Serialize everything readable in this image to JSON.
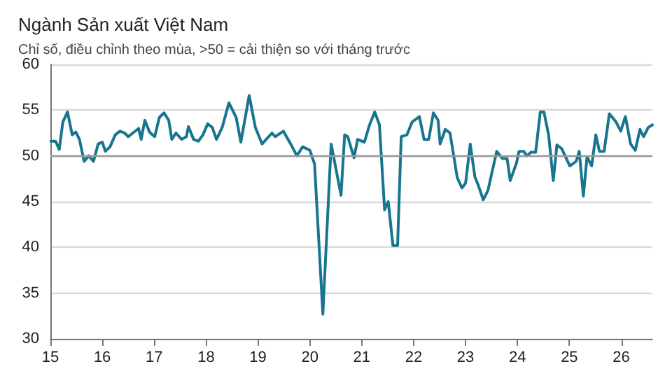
{
  "chart_data": {
    "type": "line",
    "title": "Ngành Sản xuất Việt Nam",
    "subtitle": "Chỉ số, điều chỉnh theo mùa, >50 = cải thiện so với tháng trước",
    "x": [
      2015.01,
      2015.1,
      2015.17,
      2015.24,
      2015.33,
      2015.42,
      2015.49,
      2015.56,
      2015.65,
      2015.74,
      2015.83,
      2015.92,
      2016.0,
      2016.06,
      2016.15,
      2016.25,
      2016.34,
      2016.43,
      2016.5,
      2016.61,
      2016.7,
      2016.75,
      2016.82,
      2016.91,
      2017.01,
      2017.1,
      2017.19,
      2017.28,
      2017.34,
      2017.42,
      2017.53,
      2017.62,
      2017.66,
      2017.76,
      2017.85,
      2017.94,
      2018.03,
      2018.12,
      2018.2,
      2018.31,
      2018.44,
      2018.58,
      2018.67,
      2018.83,
      2018.95,
      2019.08,
      2019.27,
      2019.33,
      2019.49,
      2019.63,
      2019.75,
      2019.86,
      2020.0,
      2020.09,
      2020.25,
      2020.41,
      2020.6,
      2020.67,
      2020.73,
      2020.85,
      2020.92,
      2021.05,
      2021.15,
      2021.25,
      2021.34,
      2021.44,
      2021.51,
      2021.6,
      2021.69,
      2021.76,
      2021.87,
      2021.97,
      2022.11,
      2022.2,
      2022.29,
      2022.38,
      2022.47,
      2022.51,
      2022.61,
      2022.7,
      2022.84,
      2022.93,
      2023.0,
      2023.09,
      2023.18,
      2023.25,
      2023.34,
      2023.43,
      2023.6,
      2023.71,
      2023.8,
      2023.86,
      2023.98,
      2024.03,
      2024.12,
      2024.18,
      2024.26,
      2024.35,
      2024.44,
      2024.51,
      2024.6,
      2024.69,
      2024.76,
      2024.85,
      2025.01,
      2025.13,
      2025.19,
      2025.27,
      2025.34,
      2025.43,
      2025.51,
      2025.58,
      2025.67,
      2025.77,
      2025.9,
      2025.99,
      2026.08,
      2026.18,
      2026.27,
      2026.36,
      2026.43,
      2026.52,
      2026.6
    ],
    "series": [
      {
        "color": "#17758e",
        "values": [
          51.6,
          51.6,
          50.7,
          53.7,
          54.8,
          52.3,
          52.6,
          51.8,
          49.4,
          50.0,
          49.4,
          51.3,
          51.5,
          50.5,
          51.0,
          52.3,
          52.7,
          52.5,
          52.1,
          52.6,
          53.0,
          51.8,
          53.9,
          52.6,
          52.1,
          54.2,
          54.7,
          53.9,
          51.8,
          52.5,
          51.8,
          52.1,
          53.2,
          51.8,
          51.6,
          52.3,
          53.5,
          53.1,
          51.8,
          53.1,
          55.8,
          54.2,
          51.5,
          56.6,
          53.1,
          51.3,
          52.5,
          52.1,
          52.7,
          51.3,
          50.0,
          51.0,
          50.6,
          49.1,
          32.7,
          51.3,
          45.7,
          52.3,
          52.1,
          49.8,
          51.8,
          51.5,
          53.4,
          54.8,
          53.4,
          44.1,
          45.0,
          40.2,
          40.2,
          52.1,
          52.3,
          53.7,
          54.3,
          51.8,
          51.8,
          54.7,
          53.9,
          51.3,
          52.9,
          52.5,
          47.6,
          46.5,
          47.0,
          51.3,
          47.7,
          46.7,
          45.2,
          46.2,
          50.5,
          49.7,
          49.7,
          47.3,
          49.2,
          50.5,
          50.5,
          50.0,
          50.4,
          50.4,
          54.8,
          54.8,
          52.3,
          47.3,
          51.2,
          50.8,
          48.9,
          49.4,
          50.5,
          45.6,
          49.9,
          48.9,
          52.3,
          50.5,
          50.5,
          54.6,
          53.7,
          52.7,
          54.3,
          51.3,
          50.6,
          52.9,
          52.1,
          53.1,
          53.4
        ]
      }
    ],
    "xlim": [
      2015,
      2026.6
    ],
    "xticks": [
      {
        "value": 2015,
        "label": "15"
      },
      {
        "value": 2016,
        "label": "16"
      },
      {
        "value": 2017,
        "label": "17"
      },
      {
        "value": 2018,
        "label": "18"
      },
      {
        "value": 2019,
        "label": "19"
      },
      {
        "value": 2020,
        "label": "20"
      },
      {
        "value": 2021,
        "label": "21"
      },
      {
        "value": 2022,
        "label": "22"
      },
      {
        "value": 2023,
        "label": "23"
      },
      {
        "value": 2024,
        "label": "24"
      },
      {
        "value": 2025,
        "label": "25"
      },
      {
        "value": 2026,
        "label": "26"
      }
    ],
    "ylim": [
      30,
      60
    ],
    "yticks": [
      30,
      35,
      40,
      45,
      50,
      55,
      60
    ],
    "ref_lines": [
      {
        "axis": "y",
        "value": 50,
        "color": "#999999"
      }
    ],
    "grid": "y",
    "marker": "none",
    "line_style": "solid"
  }
}
